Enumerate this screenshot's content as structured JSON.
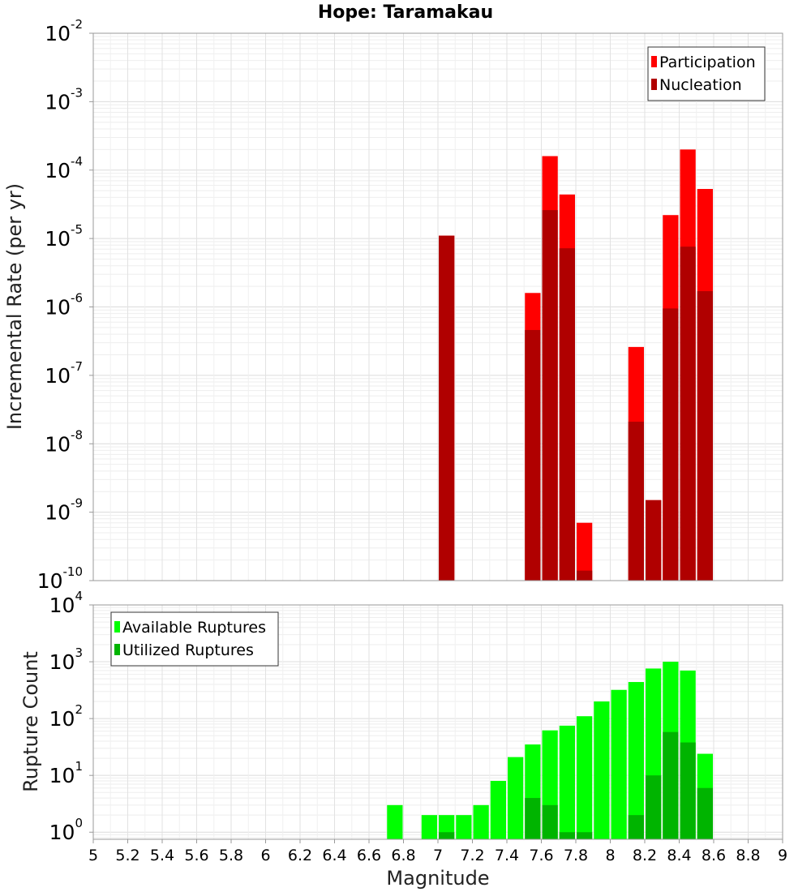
{
  "chart_data": [
    {
      "type": "bar",
      "title": "Hope: Taramakau",
      "ylabel": "Incremental Rate (per yr)",
      "xlabel": "",
      "xlim": [
        5,
        9
      ],
      "ylim": [
        1e-10,
        0.01
      ],
      "y_scale": "log",
      "bin_width": 0.1,
      "grid": true,
      "legend_position": "top-right",
      "y_tick_exponents": [
        -10,
        -9,
        -8,
        -7,
        -6,
        -5,
        -4,
        -3,
        -2
      ],
      "series": [
        {
          "name": "Participation",
          "color": "#ff0000",
          "x": [
            7.05,
            7.55,
            7.65,
            7.75,
            7.85,
            8.15,
            8.25,
            8.35,
            8.45,
            8.55
          ],
          "values": [
            1.1e-05,
            1.6e-06,
            0.00016,
            4.4e-05,
            7e-10,
            2.6e-07,
            1.5e-09,
            2.2e-05,
            0.0002,
            5.3e-05
          ]
        },
        {
          "name": "Nucleation",
          "color": "#b00000",
          "x": [
            7.05,
            7.55,
            7.65,
            7.75,
            7.85,
            8.15,
            8.25,
            8.35,
            8.45,
            8.55
          ],
          "values": [
            1.1e-05,
            4.6e-07,
            2.6e-05,
            7.2e-06,
            1.4e-10,
            2.1e-08,
            1.5e-09,
            9.5e-07,
            7.6e-06,
            1.7e-06
          ]
        }
      ]
    },
    {
      "type": "bar",
      "title": "",
      "ylabel": "Rupture Count",
      "xlabel": "Magnitude",
      "xlim": [
        5,
        9
      ],
      "ylim": [
        0.75,
        10000
      ],
      "y_scale": "log",
      "bin_width": 0.1,
      "grid": true,
      "legend_position": "top-left",
      "y_tick_exponents": [
        0,
        1,
        2,
        3,
        4
      ],
      "x_ticks": [
        "5",
        "5.2",
        "5.4",
        "5.6",
        "5.8",
        "6",
        "6.2",
        "6.4",
        "6.6",
        "6.8",
        "7",
        "7.2",
        "7.4",
        "7.6",
        "7.8",
        "8",
        "8.2",
        "8.4",
        "8.6",
        "8.8",
        "9"
      ],
      "series": [
        {
          "name": "Available Ruptures",
          "color": "#00ff00",
          "x": [
            6.75,
            6.95,
            7.05,
            7.15,
            7.25,
            7.35,
            7.45,
            7.55,
            7.65,
            7.75,
            7.85,
            7.95,
            8.05,
            8.15,
            8.25,
            8.35,
            8.45,
            8.55
          ],
          "values": [
            3,
            2,
            2,
            2,
            3,
            8,
            21,
            35,
            62,
            75,
            110,
            200,
            320,
            440,
            760,
            1000,
            700,
            24
          ]
        },
        {
          "name": "Utilized Ruptures",
          "color": "#00b400",
          "x": [
            7.05,
            7.55,
            7.65,
            7.75,
            7.85,
            8.15,
            8.25,
            8.35,
            8.45,
            8.55
          ],
          "values": [
            1,
            4,
            3,
            1,
            1,
            2,
            10,
            58,
            38,
            6
          ]
        }
      ]
    }
  ]
}
